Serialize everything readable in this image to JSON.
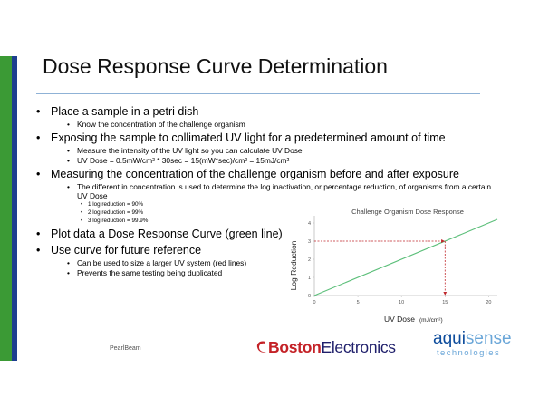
{
  "slide": {
    "title": "Dose Response Curve Determination",
    "bullets": {
      "b1": "Place a sample in a petri dish",
      "b1_1": "Know the concentration of the challenge organism",
      "b2": "Exposing the sample to collimated UV light for a predetermined amount of time",
      "b2_1": "Measure the intensity of the UV light so you can calculate UV Dose",
      "b2_2": "UV Dose = 0.5mW/cm² * 30sec = 15(mW*sec)/cm² = 15mJ/cm²",
      "b3": "Measuring the concentration of the challenge organism before and after exposure",
      "b3_1": "The different in concentration is used to determine the log inactivation, or percentage reduction, of organisms from a certain UV Dose",
      "b3_1_1": "1 log reduction = 90%",
      "b3_1_2": "2 log reduction = 99%",
      "b3_1_3": "3 log reduction = 99.9%",
      "b4": "Plot data a Dose Response Curve (green line)",
      "b5": "Use curve for future reference",
      "b5_1": "Can be used to size a larger UV system (red lines)",
      "b5_2": "Prevents the same testing being duplicated"
    }
  },
  "chart_data": {
    "type": "line",
    "title": "Challenge Organism Dose Response",
    "xlabel": "UV Dose",
    "xlabel_unit": "(mJ/cm²)",
    "ylabel": "Log Reduction",
    "xlim": [
      0,
      21
    ],
    "ylim": [
      0,
      4.2
    ],
    "x_ticks": [
      "0",
      "5",
      "10",
      "15",
      "20"
    ],
    "y_ticks": [
      "0",
      "1",
      "2",
      "3",
      "4"
    ],
    "grid": false,
    "series": [
      {
        "x": [
          0,
          21
        ],
        "y": [
          0,
          4.2
        ],
        "color": "#5cbf7a"
      }
    ],
    "reference_lines": {
      "color": "#c0282d",
      "point": {
        "x": 15,
        "y": 3
      }
    }
  },
  "footer": {
    "left_text": "PearlBeam",
    "boston_bold": "Boston",
    "boston_rest": "Electronics",
    "aqui_a": "aqui",
    "aqui_b": "sense",
    "aqui_sub": "technologies"
  }
}
